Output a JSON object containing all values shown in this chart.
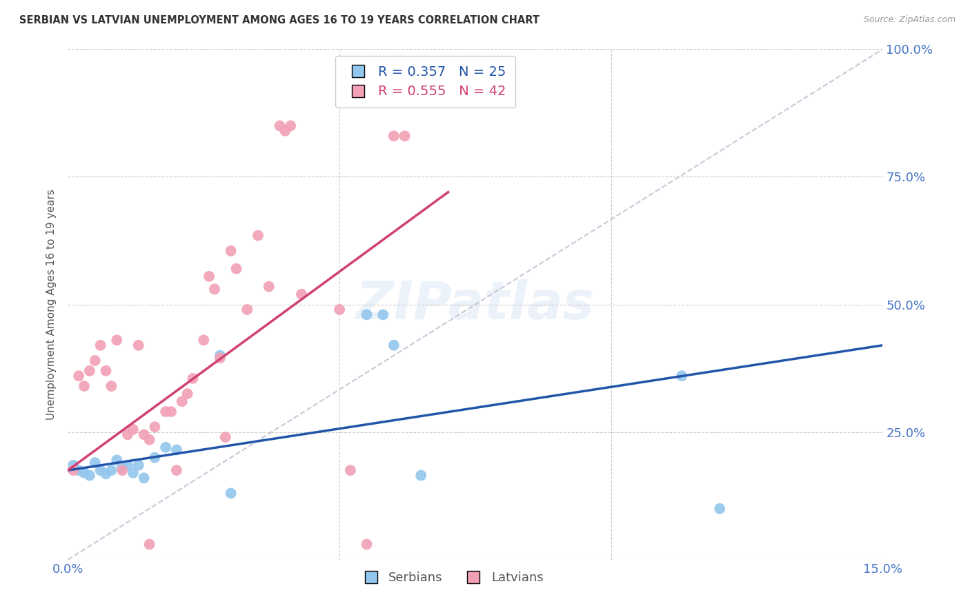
{
  "title": "SERBIAN VS LATVIAN UNEMPLOYMENT AMONG AGES 16 TO 19 YEARS CORRELATION CHART",
  "source": "Source: ZipAtlas.com",
  "ylabel": "Unemployment Among Ages 16 to 19 years",
  "xlim": [
    0.0,
    0.15
  ],
  "ylim": [
    0.0,
    1.0
  ],
  "serbian_color": "#93C6ED",
  "latvian_color": "#F2A0B5",
  "serbian_line_color": "#2255AA",
  "latvian_line_color": "#D04070",
  "ref_line_color": "#C8C8D8",
  "grid_color": "#CCCCCC",
  "background_color": "#FFFFFF",
  "title_color": "#333333",
  "tick_color": "#4472C4",
  "watermark": "ZIPatlas",
  "legend_serbian_R": "R = 0.357",
  "legend_serbian_N": "N = 25",
  "legend_latvian_R": "R = 0.555",
  "legend_latvian_N": "N = 42",
  "serbian_line_x0": 0.0,
  "serbian_line_y0": 0.175,
  "serbian_line_x1": 0.15,
  "serbian_line_y1": 0.42,
  "latvian_line_x0": 0.0,
  "latvian_line_y0": 0.175,
  "latvian_line_x1": 0.07,
  "latvian_line_y1": 0.72,
  "serbian_pts_x": [
    0.001,
    0.002,
    0.003,
    0.004,
    0.005,
    0.006,
    0.007,
    0.008,
    0.009,
    0.01,
    0.011,
    0.012,
    0.013,
    0.014,
    0.016,
    0.018,
    0.02,
    0.028,
    0.03,
    0.055,
    0.058,
    0.06,
    0.065,
    0.113,
    0.12
  ],
  "serbian_pts_y": [
    0.185,
    0.175,
    0.17,
    0.165,
    0.19,
    0.175,
    0.168,
    0.175,
    0.195,
    0.18,
    0.185,
    0.17,
    0.185,
    0.16,
    0.2,
    0.22,
    0.215,
    0.4,
    0.13,
    0.48,
    0.48,
    0.42,
    0.165,
    0.36,
    0.1
  ],
  "latvian_pts_x": [
    0.001,
    0.002,
    0.003,
    0.004,
    0.005,
    0.006,
    0.007,
    0.008,
    0.009,
    0.01,
    0.011,
    0.012,
    0.013,
    0.014,
    0.015,
    0.016,
    0.018,
    0.019,
    0.02,
    0.021,
    0.022,
    0.023,
    0.025,
    0.026,
    0.027,
    0.028,
    0.029,
    0.03,
    0.031,
    0.033,
    0.035,
    0.037,
    0.039,
    0.04,
    0.041,
    0.043,
    0.05,
    0.052,
    0.055,
    0.06,
    0.062,
    0.015
  ],
  "latvian_pts_y": [
    0.175,
    0.36,
    0.34,
    0.37,
    0.39,
    0.42,
    0.37,
    0.34,
    0.43,
    0.175,
    0.245,
    0.255,
    0.42,
    0.245,
    0.235,
    0.26,
    0.29,
    0.29,
    0.175,
    0.31,
    0.325,
    0.355,
    0.43,
    0.555,
    0.53,
    0.395,
    0.24,
    0.605,
    0.57,
    0.49,
    0.635,
    0.535,
    0.85,
    0.84,
    0.85,
    0.52,
    0.49,
    0.175,
    0.03,
    0.83,
    0.83,
    0.03
  ]
}
